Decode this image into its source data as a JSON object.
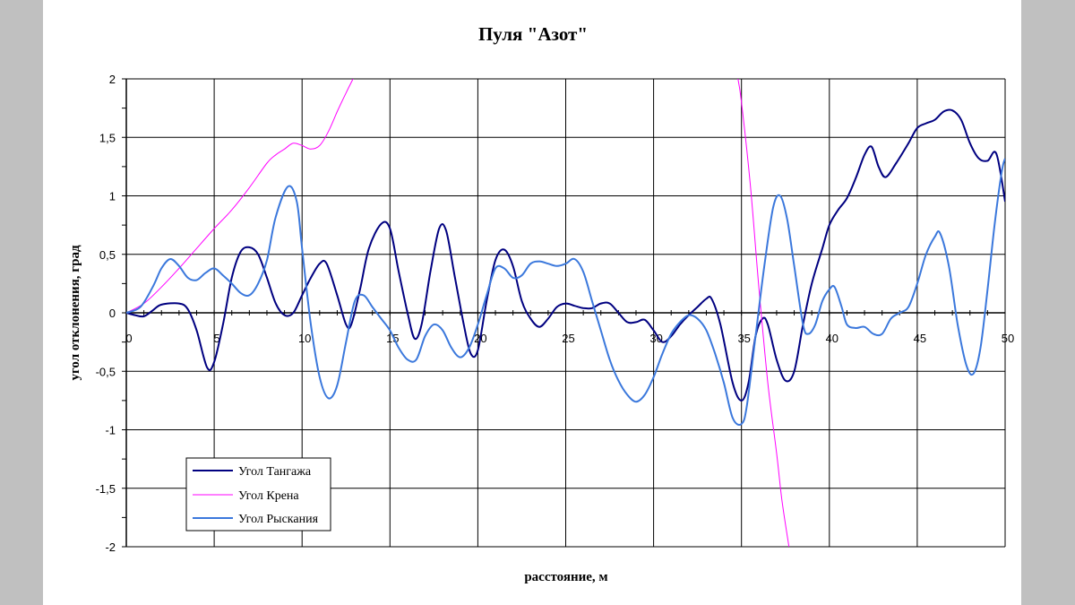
{
  "chart_data": {
    "type": "line",
    "title": "Пуля \"Азот\"",
    "xlabel": "расстояние, м",
    "ylabel": "угол отклонения, град",
    "xlim": [
      0,
      50
    ],
    "ylim": [
      -2,
      2
    ],
    "x_ticks": [
      0,
      5,
      10,
      15,
      20,
      25,
      30,
      35,
      40,
      45,
      50
    ],
    "x_tick_labels": [
      "0",
      "5",
      "10",
      "15",
      "20",
      "25",
      "30",
      "35",
      "40",
      "45",
      "50"
    ],
    "y_ticks": [
      2,
      1.5,
      1,
      0.5,
      0,
      -0.5,
      -1,
      -1.5,
      -2
    ],
    "y_tick_labels": [
      "2",
      "1,5",
      "1",
      "0,5",
      "0",
      "-0,5",
      "-1",
      "-1,5",
      "-2"
    ],
    "grid": true,
    "legend_position": "bottom-left",
    "series": [
      {
        "name": "Угол Тангажа",
        "color": "#000080",
        "points": [
          [
            0,
            0
          ],
          [
            0.5,
            -0.02
          ],
          [
            1,
            -0.03
          ],
          [
            1.5,
            0.02
          ],
          [
            2,
            0.07
          ],
          [
            3,
            0.08
          ],
          [
            3.5,
            0.03
          ],
          [
            4,
            -0.15
          ],
          [
            4.6,
            -0.47
          ],
          [
            5,
            -0.42
          ],
          [
            5.5,
            -0.1
          ],
          [
            6,
            0.3
          ],
          [
            6.5,
            0.52
          ],
          [
            7,
            0.56
          ],
          [
            7.5,
            0.5
          ],
          [
            8,
            0.3
          ],
          [
            8.5,
            0.08
          ],
          [
            9,
            -0.02
          ],
          [
            9.5,
            0
          ],
          [
            10,
            0.15
          ],
          [
            10.5,
            0.3
          ],
          [
            11,
            0.42
          ],
          [
            11.4,
            0.42
          ],
          [
            12,
            0.15
          ],
          [
            12.5,
            -0.1
          ],
          [
            12.8,
            -0.1
          ],
          [
            13.3,
            0.2
          ],
          [
            13.8,
            0.55
          ],
          [
            14.5,
            0.76
          ],
          [
            15,
            0.72
          ],
          [
            15.5,
            0.35
          ],
          [
            16,
            0
          ],
          [
            16.4,
            -0.22
          ],
          [
            16.8,
            -0.1
          ],
          [
            17.3,
            0.35
          ],
          [
            17.8,
            0.72
          ],
          [
            18.2,
            0.7
          ],
          [
            18.7,
            0.3
          ],
          [
            19.2,
            -0.1
          ],
          [
            19.6,
            -0.35
          ],
          [
            20,
            -0.32
          ],
          [
            20.5,
            0.1
          ],
          [
            21,
            0.45
          ],
          [
            21.5,
            0.54
          ],
          [
            22,
            0.4
          ],
          [
            22.5,
            0.1
          ],
          [
            23,
            -0.05
          ],
          [
            23.5,
            -0.12
          ],
          [
            24,
            -0.05
          ],
          [
            24.5,
            0.05
          ],
          [
            25,
            0.08
          ],
          [
            25.5,
            0.06
          ],
          [
            26,
            0.04
          ],
          [
            26.5,
            0.04
          ],
          [
            27,
            0.08
          ],
          [
            27.5,
            0.08
          ],
          [
            28,
            0
          ],
          [
            28.5,
            -0.08
          ],
          [
            29,
            -0.08
          ],
          [
            29.5,
            -0.06
          ],
          [
            30,
            -0.15
          ],
          [
            30.5,
            -0.25
          ],
          [
            31,
            -0.2
          ],
          [
            31.5,
            -0.1
          ],
          [
            32,
            -0.02
          ],
          [
            32.5,
            0.05
          ],
          [
            33,
            0.12
          ],
          [
            33.3,
            0.12
          ],
          [
            33.8,
            -0.1
          ],
          [
            34.5,
            -0.6
          ],
          [
            35,
            -0.75
          ],
          [
            35.4,
            -0.6
          ],
          [
            35.8,
            -0.2
          ],
          [
            36.2,
            -0.05
          ],
          [
            36.5,
            -0.1
          ],
          [
            37,
            -0.4
          ],
          [
            37.5,
            -0.58
          ],
          [
            38,
            -0.5
          ],
          [
            38.5,
            -0.1
          ],
          [
            39,
            0.25
          ],
          [
            39.6,
            0.55
          ],
          [
            40,
            0.75
          ],
          [
            40.5,
            0.88
          ],
          [
            41,
            0.98
          ],
          [
            41.5,
            1.15
          ],
          [
            42,
            1.35
          ],
          [
            42.4,
            1.42
          ],
          [
            42.8,
            1.25
          ],
          [
            43.2,
            1.16
          ],
          [
            43.8,
            1.28
          ],
          [
            44.5,
            1.45
          ],
          [
            45,
            1.58
          ],
          [
            45.5,
            1.62
          ],
          [
            46,
            1.65
          ],
          [
            46.5,
            1.72
          ],
          [
            47,
            1.73
          ],
          [
            47.5,
            1.65
          ],
          [
            48,
            1.45
          ],
          [
            48.5,
            1.32
          ],
          [
            49,
            1.3
          ],
          [
            49.5,
            1.36
          ],
          [
            50,
            0.95
          ]
        ]
      },
      {
        "name": "Угол Крена",
        "color": "#ff00ff",
        "segments": [
          [
            [
              0,
              0
            ],
            [
              1,
              0.08
            ],
            [
              2,
              0.22
            ],
            [
              3,
              0.38
            ],
            [
              4,
              0.55
            ],
            [
              5,
              0.72
            ],
            [
              6,
              0.88
            ],
            [
              7,
              1.07
            ],
            [
              8,
              1.28
            ],
            [
              8.5,
              1.35
            ],
            [
              9,
              1.4
            ],
            [
              9.5,
              1.45
            ],
            [
              10,
              1.43
            ],
            [
              10.5,
              1.4
            ],
            [
              11,
              1.43
            ],
            [
              11.5,
              1.55
            ],
            [
              12,
              1.72
            ],
            [
              12.5,
              1.88
            ],
            [
              12.9,
              2
            ]
          ],
          [
            [
              34.8,
              2
            ],
            [
              35,
              1.8
            ],
            [
              35.5,
              1.1
            ],
            [
              36,
              0.2
            ],
            [
              36.5,
              -0.6
            ],
            [
              37,
              -1.2
            ],
            [
              37.3,
              -1.6
            ],
            [
              37.7,
              -2
            ]
          ]
        ]
      },
      {
        "name": "Угол Рыскания",
        "color": "#3b78dc",
        "points": [
          [
            0,
            0
          ],
          [
            0.8,
            0.05
          ],
          [
            1.5,
            0.22
          ],
          [
            2,
            0.38
          ],
          [
            2.5,
            0.46
          ],
          [
            3,
            0.4
          ],
          [
            3.5,
            0.3
          ],
          [
            4,
            0.28
          ],
          [
            4.5,
            0.34
          ],
          [
            5,
            0.38
          ],
          [
            5.5,
            0.32
          ],
          [
            6,
            0.25
          ],
          [
            6.5,
            0.17
          ],
          [
            7,
            0.15
          ],
          [
            7.5,
            0.25
          ],
          [
            8,
            0.45
          ],
          [
            8.5,
            0.82
          ],
          [
            9.2,
            1.08
          ],
          [
            9.7,
            0.95
          ],
          [
            10,
            0.55
          ],
          [
            10.5,
            -0.1
          ],
          [
            11,
            -0.55
          ],
          [
            11.5,
            -0.73
          ],
          [
            12,
            -0.62
          ],
          [
            12.5,
            -0.25
          ],
          [
            13,
            0.1
          ],
          [
            13.5,
            0.15
          ],
          [
            14,
            0.05
          ],
          [
            14.5,
            -0.05
          ],
          [
            15,
            -0.15
          ],
          [
            15.5,
            -0.3
          ],
          [
            16,
            -0.4
          ],
          [
            16.5,
            -0.4
          ],
          [
            17,
            -0.2
          ],
          [
            17.5,
            -0.1
          ],
          [
            18,
            -0.15
          ],
          [
            18.5,
            -0.3
          ],
          [
            19,
            -0.38
          ],
          [
            19.5,
            -0.3
          ],
          [
            20,
            -0.1
          ],
          [
            20.5,
            0.15
          ],
          [
            21,
            0.38
          ],
          [
            21.5,
            0.38
          ],
          [
            22,
            0.3
          ],
          [
            22.5,
            0.32
          ],
          [
            23,
            0.42
          ],
          [
            23.5,
            0.44
          ],
          [
            24,
            0.42
          ],
          [
            24.5,
            0.4
          ],
          [
            25,
            0.42
          ],
          [
            25.5,
            0.46
          ],
          [
            26,
            0.35
          ],
          [
            26.5,
            0.1
          ],
          [
            27,
            -0.15
          ],
          [
            27.5,
            -0.4
          ],
          [
            28,
            -0.58
          ],
          [
            28.5,
            -0.7
          ],
          [
            29,
            -0.76
          ],
          [
            29.5,
            -0.7
          ],
          [
            30,
            -0.55
          ],
          [
            30.5,
            -0.35
          ],
          [
            31,
            -0.18
          ],
          [
            31.5,
            -0.08
          ],
          [
            32,
            -0.02
          ],
          [
            32.5,
            -0.05
          ],
          [
            33,
            -0.15
          ],
          [
            33.5,
            -0.35
          ],
          [
            34,
            -0.6
          ],
          [
            34.5,
            -0.9
          ],
          [
            35,
            -0.95
          ],
          [
            35.3,
            -0.8
          ],
          [
            35.8,
            -0.2
          ],
          [
            36.3,
            0.4
          ],
          [
            36.8,
            0.9
          ],
          [
            37.2,
            1.0
          ],
          [
            37.6,
            0.8
          ],
          [
            38,
            0.4
          ],
          [
            38.5,
            -0.1
          ],
          [
            38.8,
            -0.18
          ],
          [
            39.2,
            -0.1
          ],
          [
            39.6,
            0.1
          ],
          [
            40,
            0.2
          ],
          [
            40.3,
            0.22
          ],
          [
            40.7,
            0.05
          ],
          [
            41,
            -0.1
          ],
          [
            41.5,
            -0.13
          ],
          [
            42,
            -0.12
          ],
          [
            42.5,
            -0.18
          ],
          [
            43,
            -0.18
          ],
          [
            43.5,
            -0.05
          ],
          [
            44,
            0
          ],
          [
            44.5,
            0.05
          ],
          [
            45,
            0.25
          ],
          [
            45.5,
            0.5
          ],
          [
            46,
            0.65
          ],
          [
            46.3,
            0.68
          ],
          [
            46.8,
            0.4
          ],
          [
            47.3,
            -0.1
          ],
          [
            47.8,
            -0.45
          ],
          [
            48.2,
            -0.52
          ],
          [
            48.6,
            -0.3
          ],
          [
            49,
            0.2
          ],
          [
            49.4,
            0.75
          ],
          [
            49.8,
            1.2
          ],
          [
            50,
            1.32
          ]
        ]
      }
    ]
  }
}
